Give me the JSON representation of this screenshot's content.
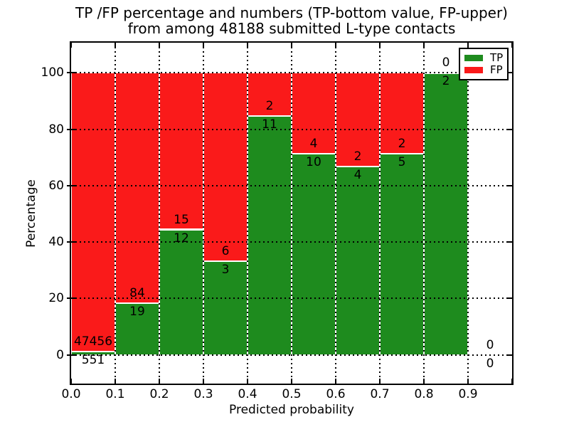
{
  "figure": {
    "title_line1": "TP /FP percentage and numbers (TP-bottom value, FP-upper)",
    "title_line2": "from among 48188 submitted L-type contacts",
    "background_color": "#ffffff",
    "text_color": "#000000"
  },
  "axes": {
    "xlabel": "Predicted probability",
    "ylabel": "Percentage"
  },
  "legend": {
    "position": "upper-right",
    "items": [
      {
        "label": "TP",
        "color": "#1e8b1e"
      },
      {
        "label": "FP",
        "color": "#fa1a1a"
      }
    ]
  },
  "chart_data": {
    "type": "bar",
    "stacked": true,
    "normalized": "percent (each bin sums to 100%)",
    "title": "TP /FP percentage and numbers (TP-bottom value, FP-upper) from among 48188 submitted L-type contacts",
    "total_submitted_contacts": 48188,
    "contact_type": "L-type",
    "xlabel": "Predicted probability",
    "ylabel": "Percentage",
    "bin_width": 0.1,
    "bins": [
      {
        "range": [
          0.0,
          0.1
        ],
        "tp": 551,
        "fp": 47456
      },
      {
        "range": [
          0.1,
          0.2
        ],
        "tp": 19,
        "fp": 84
      },
      {
        "range": [
          0.2,
          0.3
        ],
        "tp": 12,
        "fp": 15
      },
      {
        "range": [
          0.3,
          0.4
        ],
        "tp": 3,
        "fp": 6
      },
      {
        "range": [
          0.4,
          0.5
        ],
        "tp": 11,
        "fp": 2
      },
      {
        "range": [
          0.5,
          0.6
        ],
        "tp": 10,
        "fp": 4
      },
      {
        "range": [
          0.6,
          0.7
        ],
        "tp": 4,
        "fp": 2
      },
      {
        "range": [
          0.7,
          0.8
        ],
        "tp": 5,
        "fp": 2
      },
      {
        "range": [
          0.8,
          0.9
        ],
        "tp": 2,
        "fp": 0
      },
      {
        "range": [
          0.9,
          1.0
        ],
        "tp": 0,
        "fp": 0
      }
    ],
    "series": [
      {
        "name": "TP",
        "color": "#1e8b1e",
        "values": [
          551,
          19,
          12,
          3,
          11,
          10,
          4,
          5,
          2,
          0
        ]
      },
      {
        "name": "FP",
        "color": "#fa1a1a",
        "values": [
          47456,
          84,
          15,
          6,
          2,
          4,
          2,
          2,
          0,
          0
        ]
      }
    ],
    "label_convention": "TP-bottom value, FP-upper",
    "xlim": [
      0.0,
      1.0
    ],
    "ylim": [
      -10.2,
      110.7
    ],
    "xticks": [
      "0.0",
      "0.1",
      "0.2",
      "0.3",
      "0.4",
      "0.5",
      "0.6",
      "0.7",
      "0.8",
      "0.9"
    ],
    "yticks": [
      0,
      20,
      40,
      60,
      80,
      100
    ],
    "grid": "dotted",
    "legend_position": "upper right"
  }
}
